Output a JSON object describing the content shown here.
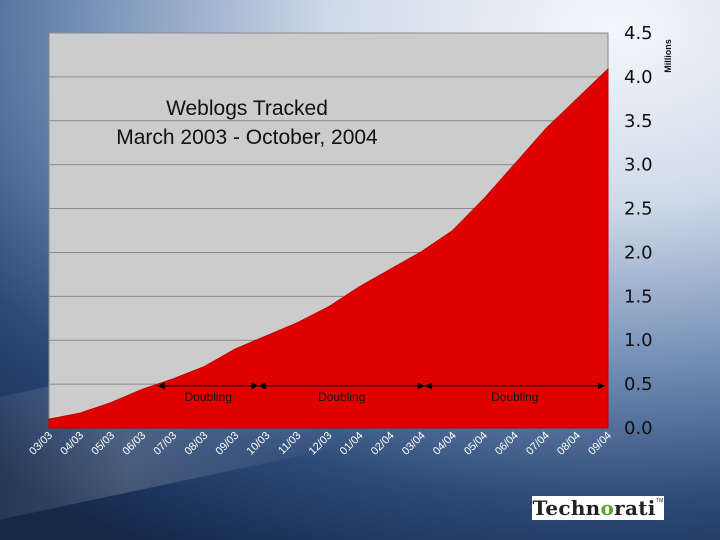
{
  "chart_data": {
    "type": "area",
    "title_line1": "Weblogs Tracked",
    "title_line2": "March 2003 - October, 2004",
    "ylabel": "Millions",
    "ylim": [
      0,
      4.5
    ],
    "y_ticks": [
      "0.0",
      "0.5",
      "1.0",
      "1.5",
      "2.0",
      "2.5",
      "3.0",
      "3.5",
      "4.0",
      "4.5"
    ],
    "grid": true,
    "categories": [
      "03/03",
      "04/03",
      "05/03",
      "06/03",
      "07/03",
      "08/03",
      "09/03",
      "10/03",
      "11/03",
      "12/03",
      "01/04",
      "02/04",
      "03/04",
      "04/04",
      "05/04",
      "06/04",
      "07/04",
      "08/04",
      "09/04"
    ],
    "series": [
      {
        "values": [
          0.1,
          0.17,
          0.29,
          0.44,
          0.56,
          0.7,
          0.9,
          1.05,
          1.2,
          1.38,
          1.61,
          1.81,
          2.01,
          2.25,
          2.61,
          3.01,
          3.41,
          3.75,
          4.09
        ],
        "color": "#e00000"
      }
    ],
    "annotations": [
      {
        "label": "Doubling",
        "from": 3.5,
        "to": 6.75,
        "y": 0.48
      },
      {
        "label": "Doubling",
        "from": 6.75,
        "to": 12.1,
        "y": 0.48
      },
      {
        "label": "Doubling",
        "from": 12.1,
        "to": 17.9,
        "y": 0.48
      }
    ]
  },
  "logo": {
    "pre": "Techn",
    "o": "o",
    "post": "rati",
    "tm": "TM"
  }
}
